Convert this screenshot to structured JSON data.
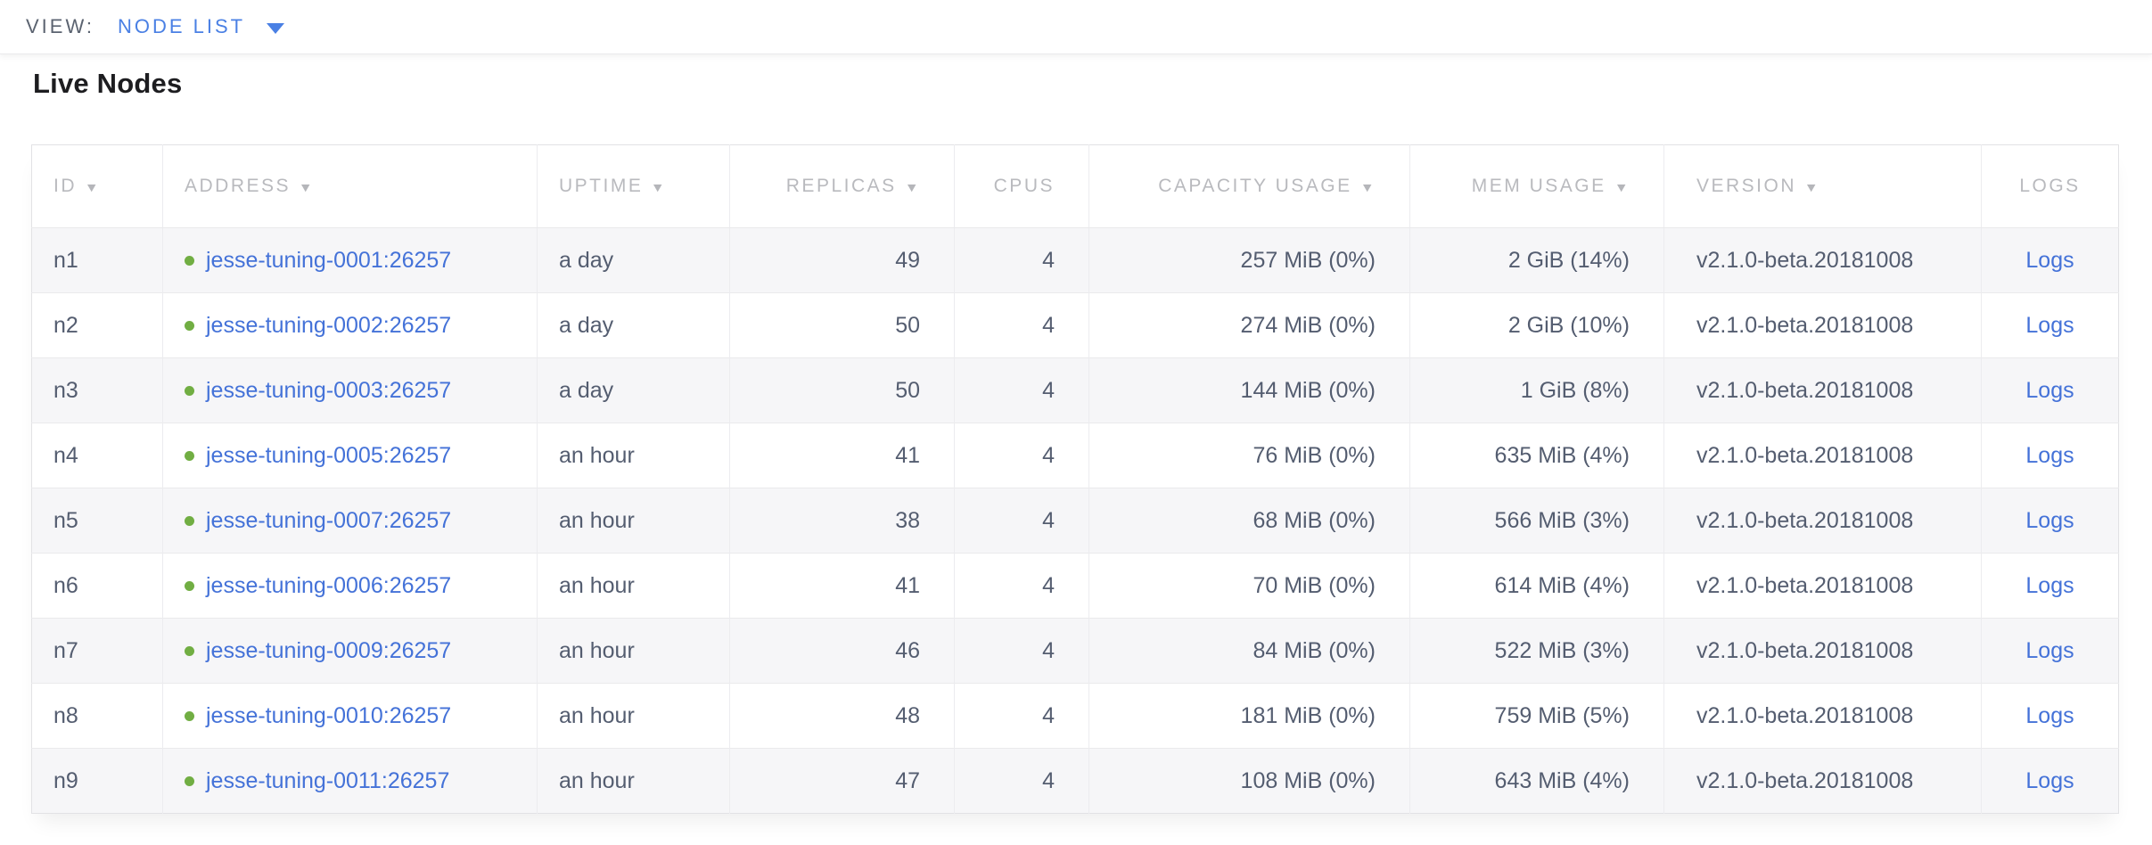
{
  "view_bar": {
    "label": "VIEW:",
    "selected": "NODE LIST"
  },
  "page": {
    "title": "Live Nodes"
  },
  "colors": {
    "accent_blue": "#4472d8",
    "live_green": "#71ae43",
    "header_gray": "#b9babe"
  },
  "table": {
    "columns": [
      {
        "key": "id",
        "label": "ID",
        "sortable": true,
        "align": "al"
      },
      {
        "key": "address",
        "label": "ADDRESS",
        "sortable": true,
        "align": "al"
      },
      {
        "key": "uptime",
        "label": "UPTIME",
        "sortable": true,
        "align": "al"
      },
      {
        "key": "replicas",
        "label": "REPLICAS",
        "sortable": true,
        "align": "ar"
      },
      {
        "key": "cpus",
        "label": "CPUS",
        "sortable": false,
        "align": "ar"
      },
      {
        "key": "capacity_usage",
        "label": "CAPACITY USAGE",
        "sortable": true,
        "align": "ar"
      },
      {
        "key": "mem_usage",
        "label": "MEM USAGE",
        "sortable": true,
        "align": "ar"
      },
      {
        "key": "version",
        "label": "VERSION",
        "sortable": true,
        "align": "al pl-version"
      },
      {
        "key": "logs",
        "label": "LOGS",
        "sortable": false,
        "align": "ac"
      }
    ],
    "rows": [
      {
        "id": "n1",
        "status": "live",
        "address": "jesse-tuning-0001:26257",
        "uptime": "a day",
        "replicas": "49",
        "cpus": "4",
        "capacity_usage": "257 MiB (0%)",
        "mem_usage": "2 GiB (14%)",
        "version": "v2.1.0-beta.20181008",
        "logs": "Logs"
      },
      {
        "id": "n2",
        "status": "live",
        "address": "jesse-tuning-0002:26257",
        "uptime": "a day",
        "replicas": "50",
        "cpus": "4",
        "capacity_usage": "274 MiB (0%)",
        "mem_usage": "2 GiB (10%)",
        "version": "v2.1.0-beta.20181008",
        "logs": "Logs"
      },
      {
        "id": "n3",
        "status": "live",
        "address": "jesse-tuning-0003:26257",
        "uptime": "a day",
        "replicas": "50",
        "cpus": "4",
        "capacity_usage": "144 MiB (0%)",
        "mem_usage": "1 GiB (8%)",
        "version": "v2.1.0-beta.20181008",
        "logs": "Logs"
      },
      {
        "id": "n4",
        "status": "live",
        "address": "jesse-tuning-0005:26257",
        "uptime": "an hour",
        "replicas": "41",
        "cpus": "4",
        "capacity_usage": "76 MiB (0%)",
        "mem_usage": "635 MiB (4%)",
        "version": "v2.1.0-beta.20181008",
        "logs": "Logs"
      },
      {
        "id": "n5",
        "status": "live",
        "address": "jesse-tuning-0007:26257",
        "uptime": "an hour",
        "replicas": "38",
        "cpus": "4",
        "capacity_usage": "68 MiB (0%)",
        "mem_usage": "566 MiB (3%)",
        "version": "v2.1.0-beta.20181008",
        "logs": "Logs"
      },
      {
        "id": "n6",
        "status": "live",
        "address": "jesse-tuning-0006:26257",
        "uptime": "an hour",
        "replicas": "41",
        "cpus": "4",
        "capacity_usage": "70 MiB (0%)",
        "mem_usage": "614 MiB (4%)",
        "version": "v2.1.0-beta.20181008",
        "logs": "Logs"
      },
      {
        "id": "n7",
        "status": "live",
        "address": "jesse-tuning-0009:26257",
        "uptime": "an hour",
        "replicas": "46",
        "cpus": "4",
        "capacity_usage": "84 MiB (0%)",
        "mem_usage": "522 MiB (3%)",
        "version": "v2.1.0-beta.20181008",
        "logs": "Logs"
      },
      {
        "id": "n8",
        "status": "live",
        "address": "jesse-tuning-0010:26257",
        "uptime": "an hour",
        "replicas": "48",
        "cpus": "4",
        "capacity_usage": "181 MiB (0%)",
        "mem_usage": "759 MiB (5%)",
        "version": "v2.1.0-beta.20181008",
        "logs": "Logs"
      },
      {
        "id": "n9",
        "status": "live",
        "address": "jesse-tuning-0011:26257",
        "uptime": "an hour",
        "replicas": "47",
        "cpus": "4",
        "capacity_usage": "108 MiB (0%)",
        "mem_usage": "643 MiB (4%)",
        "version": "v2.1.0-beta.20181008",
        "logs": "Logs"
      }
    ]
  },
  "icons": {
    "sort_arrow": "▼",
    "node_live_dot": "node-live-dot"
  }
}
